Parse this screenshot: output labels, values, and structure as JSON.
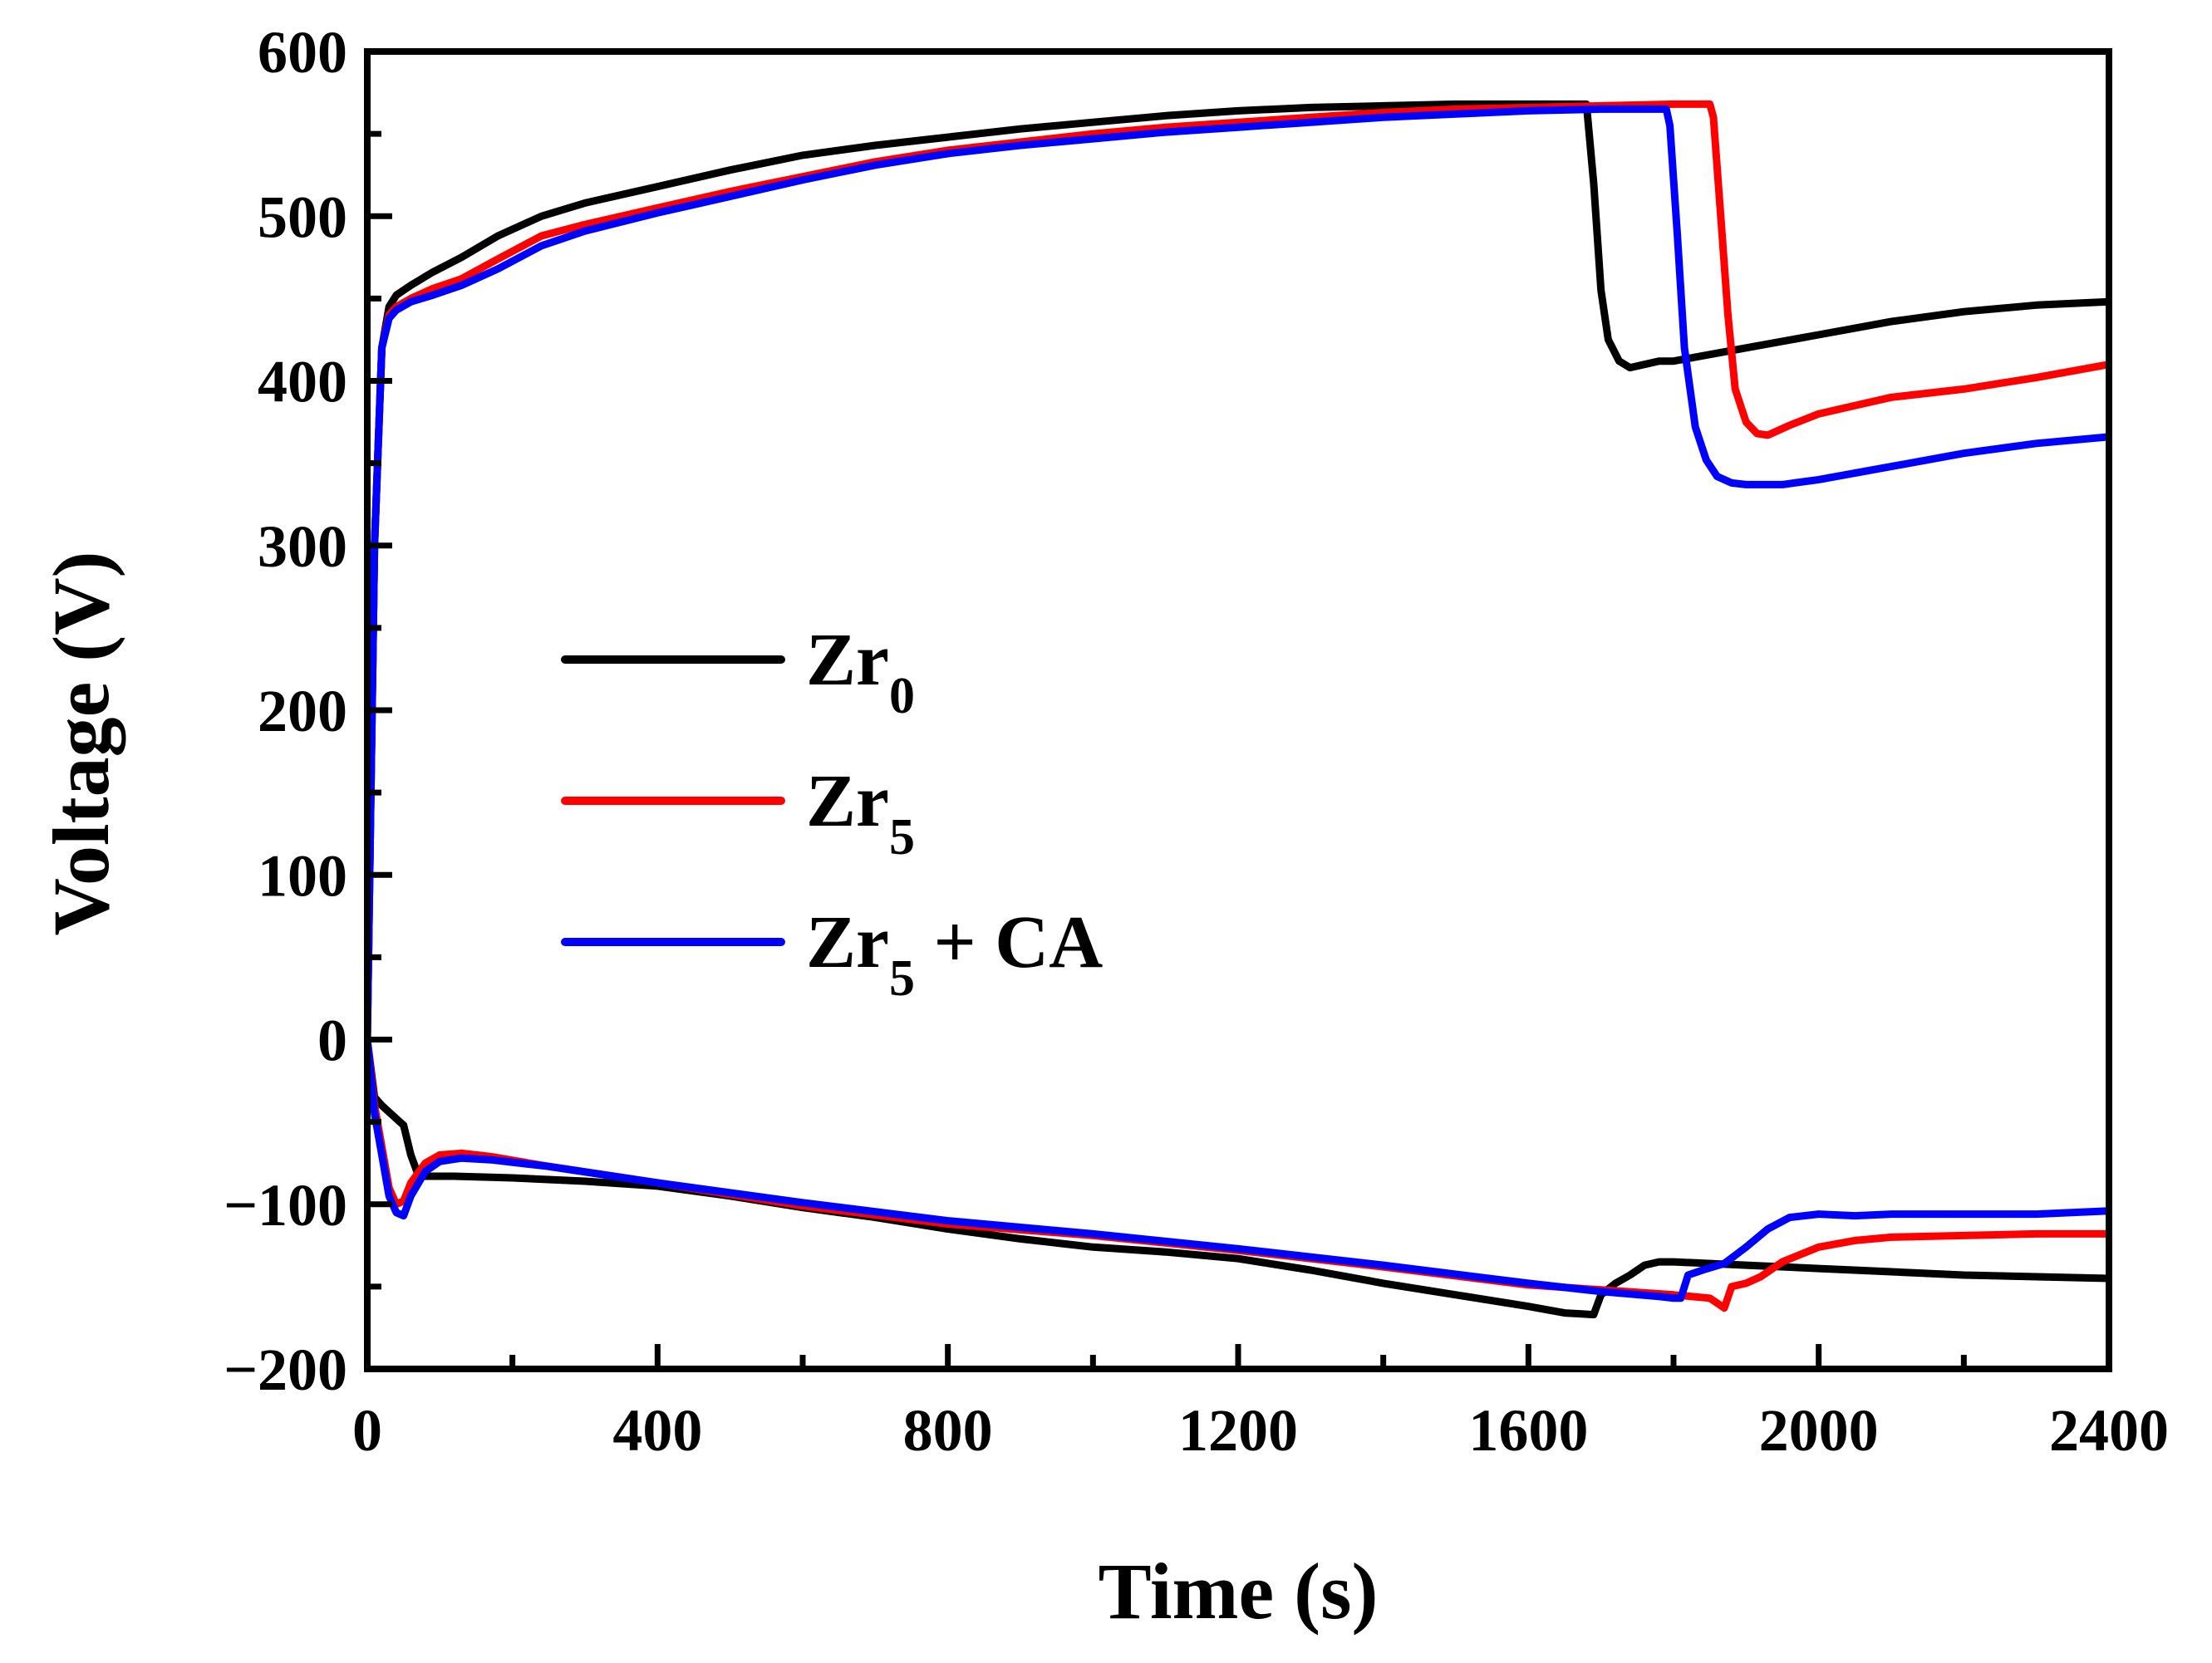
{
  "chart_data": {
    "type": "line",
    "title": "",
    "xlabel": "Time (s)",
    "ylabel": "Voltage (V)",
    "xlim": [
      0,
      2400
    ],
    "ylim": [
      -200,
      600
    ],
    "x_ticks": [
      0,
      400,
      800,
      1200,
      1600,
      2000,
      2400
    ],
    "y_ticks": [
      -200,
      -100,
      0,
      100,
      200,
      300,
      400,
      500,
      600
    ],
    "x_tick_labels": [
      "0",
      "400",
      "800",
      "1200",
      "1600",
      "2000",
      "2400"
    ],
    "y_tick_labels": [
      "−200",
      "−100",
      "0",
      "100",
      "200",
      "300",
      "400",
      "500",
      "600"
    ],
    "x_minor_step": 200,
    "y_minor_step": 50,
    "grid": false,
    "legend_position": "center-left",
    "series": [
      {
        "name": "Zr0",
        "label_main": "Zr",
        "label_sub": "0",
        "label_rest": "",
        "color": "#000000",
        "branches": [
          {
            "x": [
              0,
              10,
              20,
              30,
              40,
              60,
              90,
              130,
              180,
              240,
              300,
              400,
              500,
              600,
              700,
              800,
              900,
              1000,
              1100,
              1200,
              1300,
              1400,
              1500,
              1600,
              1650,
              1680,
              1690,
              1700,
              1710,
              1725,
              1740,
              1760,
              1780,
              1800,
              1900,
              2000,
              2100,
              2200,
              2300,
              2400
            ],
            "y": [
              0,
              300,
              420,
              445,
              452,
              458,
              466,
              475,
              488,
              500,
              508,
              518,
              528,
              537,
              543,
              548,
              553,
              557,
              561,
              564,
              566,
              567,
              568,
              568,
              568,
              568,
              520,
              455,
              425,
              412,
              408,
              410,
              412,
              412,
              420,
              428,
              436,
              442,
              446,
              448
            ]
          },
          {
            "x": [
              0,
              10,
              20,
              40,
              50,
              60,
              70,
              80,
              90,
              120,
              200,
              300,
              400,
              500,
              600,
              700,
              800,
              900,
              1000,
              1100,
              1200,
              1300,
              1400,
              1500,
              1600,
              1650,
              1690,
              1700,
              1720,
              1740,
              1760,
              1780,
              1800,
              1900,
              2000,
              2100,
              2200,
              2300,
              2400
            ],
            "y": [
              0,
              -35,
              -40,
              -48,
              -52,
              -70,
              -82,
              -83,
              -83,
              -83,
              -84,
              -86,
              -89,
              -95,
              -102,
              -108,
              -115,
              -121,
              -126,
              -129,
              -133,
              -140,
              -148,
              -155,
              -162,
              -166,
              -167,
              -155,
              -148,
              -143,
              -137,
              -135,
              -135,
              -137,
              -139,
              -141,
              -143,
              -144,
              -145
            ]
          }
        ]
      },
      {
        "name": "Zr5",
        "label_main": "Zr",
        "label_sub": "5",
        "label_rest": "",
        "color": "#ff0000",
        "branches": [
          {
            "x": [
              0,
              10,
              20,
              30,
              40,
              60,
              90,
              130,
              180,
              240,
              300,
              400,
              500,
              600,
              700,
              800,
              900,
              1000,
              1100,
              1200,
              1300,
              1400,
              1500,
              1600,
              1700,
              1800,
              1850,
              1855,
              1865,
              1875,
              1885,
              1900,
              1915,
              1930,
              1960,
              2000,
              2050,
              2100,
              2200,
              2300,
              2400
            ],
            "y": [
              0,
              300,
              420,
              440,
              445,
              450,
              456,
              462,
              474,
              488,
              495,
              505,
              515,
              524,
              533,
              540,
              545,
              550,
              554,
              557,
              560,
              563,
              565,
              566,
              567,
              568,
              568,
              560,
              500,
              440,
              395,
              375,
              368,
              367,
              373,
              380,
              385,
              390,
              395,
              402,
              410
            ]
          },
          {
            "x": [
              0,
              10,
              20,
              30,
              40,
              50,
              60,
              80,
              100,
              130,
              170,
              250,
              400,
              600,
              800,
              1000,
              1200,
              1400,
              1600,
              1700,
              1800,
              1850,
              1860,
              1870,
              1880,
              1900,
              1920,
              1950,
              2000,
              2050,
              2100,
              2200,
              2300,
              2400
            ],
            "y": [
              0,
              -40,
              -65,
              -90,
              -100,
              -98,
              -87,
              -75,
              -70,
              -69,
              -71,
              -77,
              -87,
              -101,
              -112,
              -119,
              -128,
              -138,
              -149,
              -152,
              -155,
              -157,
              -160,
              -163,
              -150,
              -148,
              -144,
              -135,
              -126,
              -122,
              -120,
              -119,
              -118,
              -118
            ]
          }
        ]
      },
      {
        "name": "Zr5 + CA",
        "label_main": "Zr",
        "label_sub": "5",
        "label_rest": " + CA",
        "color": "#0000ff",
        "branches": [
          {
            "x": [
              0,
              10,
              20,
              30,
              40,
              60,
              90,
              130,
              180,
              240,
              300,
              400,
              500,
              600,
              700,
              800,
              900,
              1000,
              1100,
              1200,
              1300,
              1400,
              1500,
              1600,
              1700,
              1760,
              1790,
              1795,
              1805,
              1815,
              1830,
              1845,
              1860,
              1880,
              1900,
              1950,
              2000,
              2100,
              2200,
              2300,
              2400
            ],
            "y": [
              0,
              300,
              420,
              438,
              443,
              448,
              452,
              458,
              468,
              482,
              491,
              502,
              512,
              522,
              531,
              538,
              543,
              547,
              551,
              554,
              557,
              560,
              562,
              564,
              565,
              565,
              565,
              555,
              490,
              420,
              372,
              352,
              342,
              338,
              337,
              337,
              340,
              348,
              356,
              362,
              366
            ]
          },
          {
            "x": [
              0,
              10,
              20,
              30,
              40,
              50,
              60,
              80,
              100,
              130,
              170,
              250,
              400,
              600,
              800,
              1000,
              1200,
              1400,
              1600,
              1700,
              1780,
              1800,
              1810,
              1820,
              1840,
              1870,
              1900,
              1930,
              1960,
              2000,
              2050,
              2100,
              2200,
              2300,
              2400
            ],
            "y": [
              0,
              -45,
              -70,
              -95,
              -105,
              -107,
              -95,
              -80,
              -74,
              -72,
              -73,
              -77,
              -87,
              -99,
              -110,
              -118,
              -127,
              -137,
              -148,
              -153,
              -156,
              -157,
              -157,
              -143,
              -140,
              -136,
              -126,
              -115,
              -108,
              -106,
              -107,
              -106,
              -106,
              -106,
              -104
            ]
          }
        ]
      }
    ]
  }
}
